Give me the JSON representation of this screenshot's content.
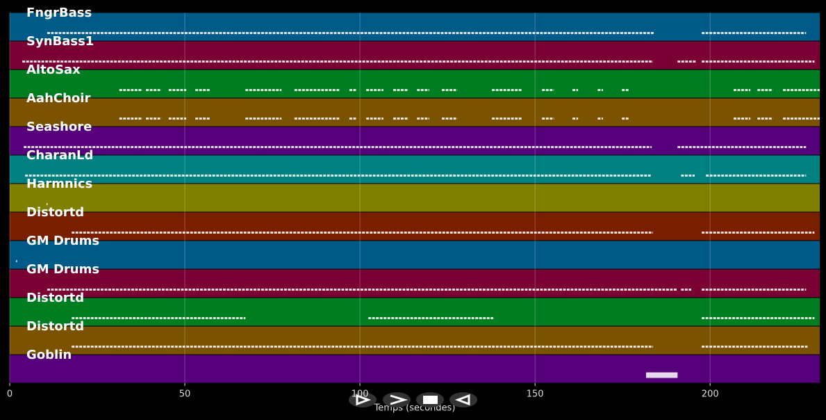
{
  "chart_data": {
    "type": "pianoroll",
    "x_label": "Temps (secondes)",
    "xlim": [
      0,
      231.3
    ],
    "xticks": [
      0,
      50,
      100,
      150,
      200
    ],
    "grid": true,
    "tracks": [
      {
        "name": "FngrBass",
        "color": "#005a87",
        "segments": [
          [
            10.7,
            184
          ],
          [
            197.6,
            227.4
          ]
        ]
      },
      {
        "name": "SynBass1",
        "color": "#7a0034",
        "segments": [
          [
            3.6,
            183.7
          ],
          [
            190.7,
            196
          ],
          [
            197.6,
            229.8
          ]
        ]
      },
      {
        "name": "AltoSax",
        "color": "#007d20",
        "segments": [
          [
            31.3,
            37.9
          ],
          [
            38.9,
            43.3
          ],
          [
            45.4,
            50.4
          ],
          [
            53,
            57.1
          ],
          [
            67.3,
            77.6
          ],
          [
            81.3,
            94.4
          ],
          [
            97,
            99
          ],
          [
            101.8,
            106.7
          ],
          [
            109.5,
            113.9
          ],
          [
            116.3,
            119.8
          ],
          [
            123.4,
            127.8
          ],
          [
            137.7,
            146.4
          ],
          [
            152,
            155.4
          ],
          [
            160.7,
            162.3
          ],
          [
            167.9,
            169.4
          ],
          [
            174.8,
            176.8
          ],
          [
            206.7,
            211.5
          ],
          [
            213.5,
            217.9
          ],
          [
            220.8,
            231.3
          ]
        ]
      },
      {
        "name": "AahChoir",
        "color": "#7a5200",
        "segments": [
          [
            31.3,
            37.9
          ],
          [
            38.9,
            43.3
          ],
          [
            45.4,
            50.4
          ],
          [
            53,
            57.1
          ],
          [
            67.3,
            77.6
          ],
          [
            81.3,
            94.4
          ],
          [
            97,
            99
          ],
          [
            101.8,
            106.7
          ],
          [
            109.5,
            113.9
          ],
          [
            116.3,
            119.8
          ],
          [
            123.4,
            127.8
          ],
          [
            137.7,
            146.4
          ],
          [
            152,
            155.4
          ],
          [
            160.7,
            162.3
          ],
          [
            167.9,
            169.4
          ],
          [
            174.8,
            176.8
          ],
          [
            206.7,
            211.5
          ],
          [
            213.5,
            217.9
          ],
          [
            220.8,
            231.3
          ]
        ]
      },
      {
        "name": "Seashore",
        "color": "#55007a",
        "segments": [
          [
            4,
            183.3
          ],
          [
            190.7,
            227.4
          ]
        ]
      },
      {
        "name": "CharanLd",
        "color": "#008080",
        "segments": [
          [
            4.4,
            183.3
          ],
          [
            191.7,
            195.6
          ],
          [
            198.8,
            227.4
          ]
        ]
      },
      {
        "name": "Harmnics",
        "color": "#808000",
        "segments": [
          [
            10.5,
            10.7
          ]
        ]
      },
      {
        "name": "Distortd",
        "color": "#7a1e00",
        "segments": [
          [
            17.7,
            183.7
          ],
          [
            197.6,
            229.8
          ]
        ]
      },
      {
        "name": "GM Drums",
        "color": "#005a87",
        "segments": [
          [
            1.8,
            2.0
          ]
        ]
      },
      {
        "name": "GM Drums",
        "color": "#7a0034",
        "segments": [
          [
            10.7,
            190.7
          ],
          [
            191.7,
            194.6
          ],
          [
            197.6,
            227.4
          ]
        ]
      },
      {
        "name": "Distortd",
        "color": "#007d20",
        "segments": [
          [
            17.7,
            67.3
          ],
          [
            102.4,
            138.1
          ],
          [
            197.6,
            229.8
          ]
        ]
      },
      {
        "name": "Distortd",
        "color": "#7a5200",
        "segments": [
          [
            17.7,
            183.7
          ],
          [
            197.6,
            227.8
          ]
        ]
      },
      {
        "name": "Goblin",
        "color": "#55007a",
        "segments": [
          [
            181.7,
            190.7
          ]
        ]
      }
    ]
  }
}
